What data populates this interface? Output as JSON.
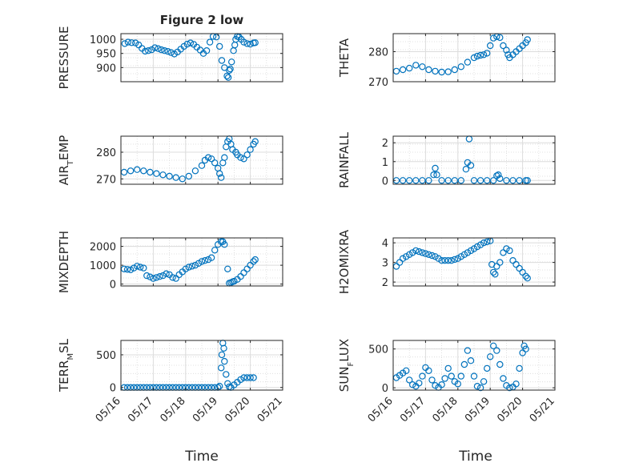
{
  "figure": {
    "title": "Figure 2 low",
    "xlabel": "Time",
    "xtick_labels": [
      "05/16",
      "05/17",
      "05/18",
      "05/19",
      "05/20",
      "05/21"
    ],
    "marker_color": "#0072BD",
    "axes_color": "#262626",
    "grid_color": "#d9d9d9"
  },
  "chart_data": [
    {
      "type": "scatter",
      "ylabel": "PRESSURE",
      "ylabel_sub": "",
      "xlim": [
        0,
        5
      ],
      "ylim": [
        850,
        1020
      ],
      "yticks": [
        900,
        950,
        1000
      ],
      "x": [
        0.12,
        0.22,
        0.33,
        0.45,
        0.55,
        0.65,
        0.75,
        0.85,
        0.95,
        1.05,
        1.15,
        1.25,
        1.35,
        1.45,
        1.55,
        1.65,
        1.75,
        1.85,
        1.95,
        2.05,
        2.15,
        2.25,
        2.35,
        2.45,
        2.55,
        2.65,
        2.75,
        2.85,
        2.95,
        3.05,
        3.12,
        3.2,
        3.28,
        3.32,
        3.35,
        3.38,
        3.42,
        3.48,
        3.52,
        3.55,
        3.6,
        3.65,
        3.72,
        3.8,
        3.9,
        4.0,
        4.1,
        4.15
      ],
      "y": [
        985,
        990,
        988,
        987,
        980,
        968,
        958,
        960,
        963,
        970,
        967,
        963,
        960,
        957,
        953,
        948,
        955,
        965,
        975,
        983,
        987,
        982,
        972,
        962,
        950,
        960,
        990,
        1010,
        1008,
        975,
        925,
        900,
        870,
        865,
        890,
        895,
        920,
        960,
        980,
        1000,
        1010,
        1008,
        1000,
        990,
        985,
        983,
        987,
        988
      ]
    },
    {
      "type": "scatter",
      "ylabel": "THETA",
      "ylabel_sub": "",
      "xlim": [
        0,
        5
      ],
      "ylim": [
        270,
        286
      ],
      "yticks": [
        270,
        280
      ],
      "x": [
        0.1,
        0.3,
        0.5,
        0.7,
        0.9,
        1.1,
        1.3,
        1.5,
        1.7,
        1.9,
        2.1,
        2.3,
        2.5,
        2.6,
        2.7,
        2.8,
        2.9,
        3.0,
        3.1,
        3.2,
        3.3,
        3.4,
        3.5,
        3.55,
        3.6,
        3.7,
        3.8,
        3.9,
        4.0,
        4.1,
        4.15
      ],
      "y": [
        273.5,
        274,
        274.5,
        275.5,
        275,
        274,
        273.5,
        273.2,
        273.3,
        274,
        275,
        276.5,
        278,
        278.5,
        278.8,
        279,
        279.5,
        282,
        284.5,
        285,
        284.7,
        282,
        280.5,
        279,
        278,
        279,
        280,
        281,
        282,
        283,
        284
      ]
    },
    {
      "type": "scatter",
      "ylabel": "AIR",
      "ylabel_sub": "T",
      "ylabel_rest": "EMP",
      "xlim": [
        0,
        5
      ],
      "ylim": [
        268,
        286
      ],
      "yticks": [
        270,
        280
      ],
      "x": [
        0.1,
        0.3,
        0.5,
        0.7,
        0.9,
        1.1,
        1.3,
        1.5,
        1.7,
        1.9,
        2.1,
        2.3,
        2.5,
        2.6,
        2.7,
        2.8,
        2.9,
        3.0,
        3.05,
        3.1,
        3.15,
        3.2,
        3.25,
        3.3,
        3.35,
        3.4,
        3.45,
        3.55,
        3.6,
        3.7,
        3.8,
        3.9,
        4.0,
        4.1,
        4.15
      ],
      "y": [
        272.5,
        273,
        273.5,
        273,
        272.5,
        272,
        271.5,
        271,
        270.5,
        270,
        271,
        273,
        275,
        277,
        278,
        277.5,
        276,
        274,
        272,
        270.5,
        276,
        278,
        282,
        284,
        285,
        283,
        281,
        280,
        279,
        278,
        277.5,
        279,
        281,
        283,
        284
      ]
    },
    {
      "type": "scatter",
      "ylabel": "RAINFALL",
      "ylabel_sub": "",
      "xlim": [
        0,
        5
      ],
      "ylim": [
        -0.2,
        2.35
      ],
      "yticks": [
        0,
        1,
        2
      ],
      "x": [
        0.1,
        0.3,
        0.5,
        0.7,
        0.9,
        1.1,
        1.25,
        1.3,
        1.35,
        1.5,
        1.7,
        1.9,
        2.1,
        2.25,
        2.3,
        2.35,
        2.4,
        2.5,
        2.7,
        2.9,
        3.1,
        3.2,
        3.25,
        3.3,
        3.5,
        3.7,
        3.9,
        4.1,
        4.15
      ],
      "y": [
        0,
        0,
        0,
        0,
        0,
        0,
        0.3,
        0.65,
        0.3,
        0,
        0,
        0,
        0,
        0.6,
        0.95,
        2.2,
        0.8,
        0,
        0,
        0,
        0,
        0.25,
        0.3,
        0.1,
        0,
        0,
        0,
        0,
        0
      ]
    },
    {
      "type": "scatter",
      "ylabel": "MIXDEPTH",
      "ylabel_sub": "",
      "xlim": [
        0,
        5
      ],
      "ylim": [
        -100,
        2450
      ],
      "yticks": [
        0,
        1000,
        2000
      ],
      "x": [
        0.1,
        0.2,
        0.3,
        0.4,
        0.5,
        0.6,
        0.7,
        0.8,
        0.9,
        1.0,
        1.1,
        1.2,
        1.3,
        1.4,
        1.5,
        1.6,
        1.7,
        1.8,
        1.9,
        2.0,
        2.1,
        2.2,
        2.3,
        2.4,
        2.5,
        2.6,
        2.7,
        2.8,
        2.9,
        3.0,
        3.1,
        3.15,
        3.2,
        3.3,
        3.35,
        3.4,
        3.45,
        3.5,
        3.6,
        3.7,
        3.8,
        3.9,
        4.0,
        4.1,
        4.15
      ],
      "y": [
        800,
        780,
        760,
        850,
        950,
        900,
        850,
        450,
        380,
        300,
        350,
        400,
        450,
        550,
        500,
        350,
        300,
        500,
        650,
        800,
        900,
        950,
        1000,
        1100,
        1200,
        1250,
        1300,
        1400,
        1800,
        2100,
        2250,
        2250,
        2100,
        800,
        50,
        80,
        120,
        150,
        250,
        400,
        600,
        800,
        1000,
        1200,
        1300
      ]
    },
    {
      "type": "scatter",
      "ylabel": "H2OMIXRA",
      "ylabel_sub": "",
      "xlim": [
        0,
        5
      ],
      "ylim": [
        1.8,
        4.25
      ],
      "yticks": [
        2,
        3,
        4
      ],
      "x": [
        0.1,
        0.2,
        0.3,
        0.4,
        0.5,
        0.6,
        0.7,
        0.8,
        0.9,
        1.0,
        1.1,
        1.2,
        1.3,
        1.4,
        1.5,
        1.6,
        1.7,
        1.8,
        1.9,
        2.0,
        2.1,
        2.2,
        2.3,
        2.4,
        2.5,
        2.6,
        2.7,
        2.8,
        2.9,
        3.0,
        3.05,
        3.1,
        3.15,
        3.2,
        3.3,
        3.4,
        3.5,
        3.6,
        3.7,
        3.8,
        3.9,
        4.0,
        4.1,
        4.15
      ],
      "y": [
        2.8,
        3.0,
        3.2,
        3.3,
        3.4,
        3.5,
        3.6,
        3.55,
        3.5,
        3.45,
        3.4,
        3.35,
        3.3,
        3.2,
        3.1,
        3.1,
        3.1,
        3.1,
        3.15,
        3.2,
        3.3,
        3.4,
        3.5,
        3.6,
        3.7,
        3.8,
        3.9,
        4.0,
        4.05,
        4.1,
        2.9,
        2.5,
        2.4,
        2.8,
        3.0,
        3.5,
        3.7,
        3.6,
        3.1,
        2.9,
        2.7,
        2.5,
        2.3,
        2.2
      ]
    },
    {
      "type": "scatter",
      "ylabel": "TERR",
      "ylabel_sub": "M",
      "ylabel_rest": "SL",
      "xlim": [
        0,
        5
      ],
      "ylim": [
        -40,
        720
      ],
      "yticks": [
        0,
        500
      ],
      "x": [
        0.1,
        0.2,
        0.3,
        0.4,
        0.5,
        0.6,
        0.7,
        0.8,
        0.9,
        1.0,
        1.1,
        1.2,
        1.3,
        1.4,
        1.5,
        1.6,
        1.7,
        1.8,
        1.9,
        2.0,
        2.1,
        2.2,
        2.3,
        2.4,
        2.5,
        2.6,
        2.7,
        2.8,
        2.9,
        3.0,
        3.05,
        3.1,
        3.12,
        3.15,
        3.18,
        3.2,
        3.25,
        3.3,
        3.35,
        3.4,
        3.5,
        3.6,
        3.7,
        3.8,
        3.9,
        4.0,
        4.1
      ],
      "y": [
        0,
        0,
        0,
        0,
        0,
        0,
        0,
        0,
        0,
        0,
        0,
        0,
        0,
        0,
        0,
        0,
        0,
        0,
        0,
        0,
        0,
        0,
        0,
        0,
        0,
        0,
        0,
        0,
        0,
        0,
        20,
        300,
        500,
        680,
        600,
        400,
        200,
        60,
        10,
        0,
        40,
        80,
        120,
        150,
        150,
        150,
        150
      ]
    },
    {
      "type": "scatter",
      "ylabel": "SUN",
      "ylabel_sub": "F",
      "ylabel_rest": "LUX",
      "xlim": [
        0,
        5
      ],
      "ylim": [
        -30,
        610
      ],
      "yticks": [
        0,
        500
      ],
      "x": [
        0.1,
        0.2,
        0.3,
        0.4,
        0.5,
        0.6,
        0.7,
        0.8,
        0.9,
        1.0,
        1.1,
        1.2,
        1.3,
        1.4,
        1.5,
        1.6,
        1.7,
        1.8,
        1.9,
        2.0,
        2.1,
        2.2,
        2.3,
        2.4,
        2.5,
        2.6,
        2.7,
        2.8,
        2.9,
        3.0,
        3.1,
        3.2,
        3.3,
        3.4,
        3.5,
        3.6,
        3.7,
        3.8,
        3.9,
        4.0,
        4.05,
        4.1
      ],
      "y": [
        130,
        160,
        190,
        220,
        100,
        40,
        20,
        60,
        150,
        260,
        220,
        100,
        30,
        5,
        40,
        120,
        250,
        150,
        80,
        50,
        150,
        300,
        480,
        350,
        150,
        20,
        0,
        80,
        250,
        400,
        540,
        480,
        300,
        120,
        30,
        0,
        10,
        50,
        250,
        450,
        540,
        500
      ]
    }
  ]
}
